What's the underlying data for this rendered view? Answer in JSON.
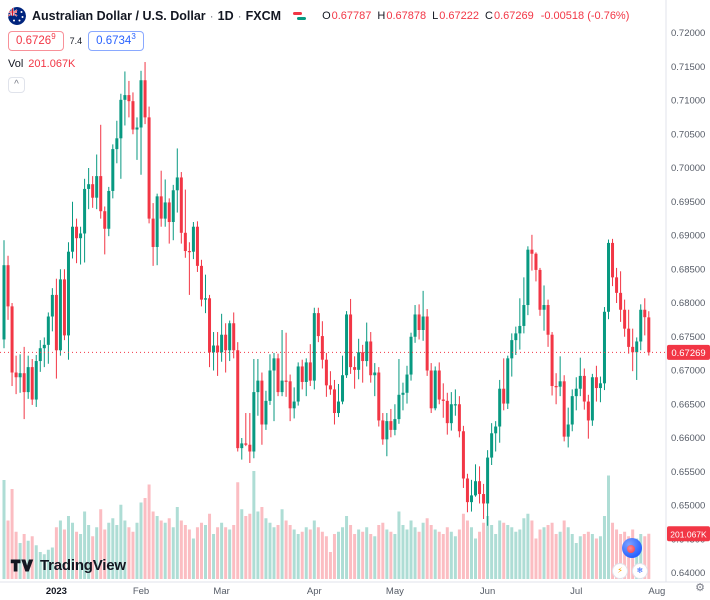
{
  "header": {
    "symbol_name": "Australian Dollar / U.S. Dollar",
    "sep": "·",
    "interval": "1D",
    "exchange": "FXCM",
    "ohlc": {
      "o_label": "O",
      "o": "0.67787",
      "h_label": "H",
      "h": "0.67878",
      "l_label": "L",
      "l": "0.67222",
      "c_label": "C",
      "c": "0.67269",
      "change": "-0.00518 (-0.76%)"
    },
    "sell_price": "0.6726",
    "sell_sup": "9",
    "spread": "7.4",
    "buy_price": "0.6734",
    "buy_sup": "3",
    "vol_label": "Vol",
    "vol_value": "201.067K",
    "collapse_glyph": "^"
  },
  "logo": {
    "text": "TradingView"
  },
  "floating": {
    "lightning": "⚡",
    "snowflake": "❄"
  },
  "axis": {
    "gear_glyph": "⚙"
  },
  "colors": {
    "up": "#089981",
    "down": "#f23645",
    "accent_blue": "#2962ff",
    "axis_text": "#555b66",
    "axis_border": "#e0e3eb",
    "year_text": "#131722"
  },
  "chart_data": {
    "type": "candlestick+volume",
    "symbol": "AUD/USD",
    "exchange": "FXCM",
    "interval": "1D",
    "title": "Australian Dollar / U.S. Dollar · 1D · FXCM",
    "legend_ohlc": {
      "open": 0.67787,
      "high": 0.67878,
      "low": 0.67222,
      "close": 0.67269,
      "change": -0.00518,
      "change_pct": -0.76
    },
    "last_price": 0.67269,
    "last_price_label": "0.67269",
    "volume_label": "201.067K",
    "price_range": [
      0.64,
      0.72
    ],
    "grid": false,
    "legend_position": "top-left",
    "price_axis_labels": [
      "0.72000",
      "0.71500",
      "0.71000",
      "0.70500",
      "0.70000",
      "0.69500",
      "0.69000",
      "0.68500",
      "0.68000",
      "0.67500",
      "0.67000",
      "0.66500",
      "0.66000",
      "0.65500",
      "0.65000",
      "0.64500",
      "0.64000"
    ],
    "time_axis": [
      {
        "label": "2023",
        "i": 13,
        "year": true
      },
      {
        "label": "Feb",
        "i": 34
      },
      {
        "label": "Mar",
        "i": 54
      },
      {
        "label": "Apr",
        "i": 77
      },
      {
        "label": "May",
        "i": 97
      },
      {
        "label": "Jun",
        "i": 120
      },
      {
        "label": "Jul",
        "i": 142
      },
      {
        "label": "Aug",
        "i": 162
      }
    ],
    "candles": [
      [
        0.6746,
        0.6893,
        0.6733,
        0.6856
      ],
      [
        0.6856,
        0.687,
        0.6775,
        0.6795
      ],
      [
        0.6795,
        0.68,
        0.6677,
        0.6697
      ],
      [
        0.6697,
        0.6722,
        0.6665,
        0.669
      ],
      [
        0.669,
        0.6724,
        0.6667,
        0.6696
      ],
      [
        0.6696,
        0.6735,
        0.6628,
        0.6668
      ],
      [
        0.6668,
        0.6722,
        0.6658,
        0.6705
      ],
      [
        0.6705,
        0.6717,
        0.6649,
        0.6657
      ],
      [
        0.6657,
        0.6723,
        0.6646,
        0.6714
      ],
      [
        0.6714,
        0.6745,
        0.6698,
        0.6733
      ],
      [
        0.6733,
        0.6749,
        0.6705,
        0.6738
      ],
      [
        0.6738,
        0.6786,
        0.671,
        0.678
      ],
      [
        0.678,
        0.6822,
        0.6758,
        0.6812
      ],
      [
        0.6812,
        0.6836,
        0.6688,
        0.673
      ],
      [
        0.673,
        0.685,
        0.6722,
        0.6835
      ],
      [
        0.6835,
        0.685,
        0.6745,
        0.6752
      ],
      [
        0.6752,
        0.689,
        0.6716,
        0.6876
      ],
      [
        0.6876,
        0.695,
        0.6866,
        0.6913
      ],
      [
        0.6913,
        0.6925,
        0.6859,
        0.6896
      ],
      [
        0.6896,
        0.6913,
        0.6857,
        0.6903
      ],
      [
        0.6903,
        0.6984,
        0.686,
        0.6969
      ],
      [
        0.6969,
        0.7,
        0.6939,
        0.6976
      ],
      [
        0.6976,
        0.6988,
        0.6941,
        0.6956
      ],
      [
        0.6956,
        0.702,
        0.6939,
        0.6988
      ],
      [
        0.6988,
        0.7064,
        0.6925,
        0.6936
      ],
      [
        0.6936,
        0.6943,
        0.6872,
        0.691
      ],
      [
        0.691,
        0.6972,
        0.6899,
        0.6966
      ],
      [
        0.6966,
        0.7035,
        0.6955,
        0.7028
      ],
      [
        0.7028,
        0.707,
        0.7007,
        0.7044
      ],
      [
        0.7044,
        0.711,
        0.6984,
        0.7101
      ],
      [
        0.7101,
        0.7143,
        0.7063,
        0.7108
      ],
      [
        0.7108,
        0.7129,
        0.7075,
        0.7099
      ],
      [
        0.7099,
        0.7112,
        0.705,
        0.7057
      ],
      [
        0.7057,
        0.7075,
        0.7012,
        0.706
      ],
      [
        0.706,
        0.7144,
        0.699,
        0.713
      ],
      [
        0.713,
        0.7157,
        0.7065,
        0.7075
      ],
      [
        0.7075,
        0.7091,
        0.6918,
        0.6925
      ],
      [
        0.6925,
        0.6948,
        0.6855,
        0.6883
      ],
      [
        0.6883,
        0.6962,
        0.6856,
        0.6958
      ],
      [
        0.6958,
        0.6996,
        0.6913,
        0.6925
      ],
      [
        0.6925,
        0.6983,
        0.6913,
        0.6949
      ],
      [
        0.6949,
        0.6955,
        0.6888,
        0.692
      ],
      [
        0.692,
        0.6975,
        0.6893,
        0.6967
      ],
      [
        0.6967,
        0.7029,
        0.6934,
        0.6986
      ],
      [
        0.6986,
        0.6994,
        0.6888,
        0.6904
      ],
      [
        0.6904,
        0.6968,
        0.6867,
        0.6877
      ],
      [
        0.6877,
        0.689,
        0.6812,
        0.6876
      ],
      [
        0.6876,
        0.692,
        0.6865,
        0.6913
      ],
      [
        0.6913,
        0.6921,
        0.6846,
        0.6855
      ],
      [
        0.6855,
        0.6864,
        0.6795,
        0.6805
      ],
      [
        0.6805,
        0.6842,
        0.6785,
        0.6807
      ],
      [
        0.6807,
        0.6812,
        0.6705,
        0.6727
      ],
      [
        0.6727,
        0.6757,
        0.67,
        0.6737
      ],
      [
        0.6737,
        0.6757,
        0.6692,
        0.6727
      ],
      [
        0.6727,
        0.6784,
        0.6713,
        0.6753
      ],
      [
        0.6753,
        0.677,
        0.6697,
        0.673
      ],
      [
        0.673,
        0.6774,
        0.6714,
        0.677
      ],
      [
        0.677,
        0.6786,
        0.6718,
        0.673
      ],
      [
        0.673,
        0.6742,
        0.658,
        0.6585
      ],
      [
        0.6585,
        0.66,
        0.6568,
        0.6592
      ],
      [
        0.6592,
        0.6637,
        0.6588,
        0.659
      ],
      [
        0.659,
        0.6637,
        0.6563,
        0.658
      ],
      [
        0.658,
        0.6717,
        0.657,
        0.6668
      ],
      [
        0.6668,
        0.6717,
        0.6633,
        0.6685
      ],
      [
        0.6685,
        0.6697,
        0.659,
        0.662
      ],
      [
        0.662,
        0.667,
        0.6612,
        0.6655
      ],
      [
        0.6655,
        0.6724,
        0.6649,
        0.67
      ],
      [
        0.67,
        0.6726,
        0.6625,
        0.6718
      ],
      [
        0.6718,
        0.6725,
        0.6662,
        0.6668
      ],
      [
        0.6668,
        0.676,
        0.6662,
        0.6685
      ],
      [
        0.6685,
        0.6756,
        0.6661,
        0.6684
      ],
      [
        0.6684,
        0.6694,
        0.6625,
        0.6644
      ],
      [
        0.6644,
        0.6675,
        0.6629,
        0.6654
      ],
      [
        0.6654,
        0.6712,
        0.6648,
        0.6706
      ],
      [
        0.6706,
        0.6716,
        0.6672,
        0.6683
      ],
      [
        0.6683,
        0.6718,
        0.6662,
        0.6712
      ],
      [
        0.6712,
        0.6739,
        0.6677,
        0.6685
      ],
      [
        0.6685,
        0.6793,
        0.6672,
        0.6785
      ],
      [
        0.6785,
        0.6793,
        0.6742,
        0.6751
      ],
      [
        0.6751,
        0.6773,
        0.6703,
        0.6716
      ],
      [
        0.6716,
        0.6726,
        0.6661,
        0.6678
      ],
      [
        0.6678,
        0.6699,
        0.6664,
        0.6672
      ],
      [
        0.6672,
        0.6686,
        0.662,
        0.6637
      ],
      [
        0.6637,
        0.668,
        0.6631,
        0.6654
      ],
      [
        0.6654,
        0.6722,
        0.665,
        0.6693
      ],
      [
        0.6693,
        0.6788,
        0.6689,
        0.6783
      ],
      [
        0.6783,
        0.6806,
        0.6695,
        0.6705
      ],
      [
        0.6705,
        0.6721,
        0.6673,
        0.6701
      ],
      [
        0.6701,
        0.6747,
        0.6687,
        0.6727
      ],
      [
        0.6727,
        0.6738,
        0.6682,
        0.6714
      ],
      [
        0.6714,
        0.6771,
        0.6706,
        0.6743
      ],
      [
        0.6743,
        0.6757,
        0.6682,
        0.6693
      ],
      [
        0.6693,
        0.6711,
        0.6662,
        0.6697
      ],
      [
        0.6697,
        0.6705,
        0.6617,
        0.6626
      ],
      [
        0.6626,
        0.6637,
        0.659,
        0.6598
      ],
      [
        0.6598,
        0.6637,
        0.6573,
        0.6625
      ],
      [
        0.6625,
        0.6643,
        0.6601,
        0.6612
      ],
      [
        0.6612,
        0.665,
        0.6604,
        0.6628
      ],
      [
        0.6628,
        0.6717,
        0.6621,
        0.6664
      ],
      [
        0.6664,
        0.6682,
        0.6641,
        0.6667
      ],
      [
        0.6667,
        0.6707,
        0.6651,
        0.6694
      ],
      [
        0.6694,
        0.6756,
        0.6685,
        0.675
      ],
      [
        0.675,
        0.6797,
        0.6741,
        0.6783
      ],
      [
        0.6783,
        0.6798,
        0.6746,
        0.676
      ],
      [
        0.676,
        0.6818,
        0.6744,
        0.678
      ],
      [
        0.678,
        0.6791,
        0.6692,
        0.67
      ],
      [
        0.67,
        0.6711,
        0.6637,
        0.6644
      ],
      [
        0.6644,
        0.6706,
        0.6641,
        0.67
      ],
      [
        0.67,
        0.6712,
        0.665,
        0.6657
      ],
      [
        0.6657,
        0.6681,
        0.663,
        0.6655
      ],
      [
        0.6655,
        0.6667,
        0.6605,
        0.6622
      ],
      [
        0.6622,
        0.6668,
        0.6611,
        0.665
      ],
      [
        0.665,
        0.6672,
        0.6633,
        0.665
      ],
      [
        0.665,
        0.6662,
        0.6601,
        0.661
      ],
      [
        0.661,
        0.6618,
        0.6526,
        0.654
      ],
      [
        0.654,
        0.6547,
        0.649,
        0.6505
      ],
      [
        0.6505,
        0.6538,
        0.6491,
        0.6515
      ],
      [
        0.6515,
        0.6561,
        0.6513,
        0.6536
      ],
      [
        0.6536,
        0.6558,
        0.6503,
        0.6517
      ],
      [
        0.6517,
        0.6532,
        0.648,
        0.6503
      ],
      [
        0.6503,
        0.6582,
        0.647,
        0.6571
      ],
      [
        0.6571,
        0.6622,
        0.656,
        0.6607
      ],
      [
        0.6607,
        0.6625,
        0.658,
        0.6617
      ],
      [
        0.6617,
        0.6686,
        0.6593,
        0.6673
      ],
      [
        0.6673,
        0.6718,
        0.6641,
        0.6651
      ],
      [
        0.6651,
        0.6722,
        0.6643,
        0.6718
      ],
      [
        0.6718,
        0.6755,
        0.6691,
        0.6745
      ],
      [
        0.6745,
        0.6765,
        0.6723,
        0.6755
      ],
      [
        0.6755,
        0.6807,
        0.6731,
        0.6766
      ],
      [
        0.6766,
        0.6838,
        0.6755,
        0.6797
      ],
      [
        0.6797,
        0.6884,
        0.6782,
        0.6879
      ],
      [
        0.6879,
        0.6901,
        0.6848,
        0.6873
      ],
      [
        0.6873,
        0.6875,
        0.6832,
        0.6849
      ],
      [
        0.6849,
        0.6852,
        0.6781,
        0.679
      ],
      [
        0.679,
        0.6826,
        0.6759,
        0.6797
      ],
      [
        0.6797,
        0.6805,
        0.6735,
        0.6753
      ],
      [
        0.6753,
        0.6757,
        0.6663,
        0.6677
      ],
      [
        0.6677,
        0.6696,
        0.665,
        0.6676
      ],
      [
        0.6676,
        0.6721,
        0.6662,
        0.6684
      ],
      [
        0.6684,
        0.6693,
        0.6595,
        0.6602
      ],
      [
        0.6602,
        0.6645,
        0.6586,
        0.662
      ],
      [
        0.662,
        0.6672,
        0.661,
        0.6662
      ],
      [
        0.6662,
        0.669,
        0.6641,
        0.6673
      ],
      [
        0.6673,
        0.6719,
        0.6662,
        0.6692
      ],
      [
        0.6692,
        0.6703,
        0.6642,
        0.6654
      ],
      [
        0.6654,
        0.6664,
        0.6599,
        0.6626
      ],
      [
        0.6626,
        0.6695,
        0.6618,
        0.669
      ],
      [
        0.669,
        0.6707,
        0.6654,
        0.6674
      ],
      [
        0.6674,
        0.6691,
        0.6653,
        0.6681
      ],
      [
        0.6681,
        0.6794,
        0.6671,
        0.6787
      ],
      [
        0.6787,
        0.6894,
        0.6776,
        0.6889
      ],
      [
        0.6889,
        0.6895,
        0.6825,
        0.6838
      ],
      [
        0.6838,
        0.6852,
        0.68,
        0.6815
      ],
      [
        0.6815,
        0.6847,
        0.6772,
        0.679
      ],
      [
        0.679,
        0.6805,
        0.675,
        0.6762
      ],
      [
        0.6762,
        0.679,
        0.6725,
        0.6735
      ],
      [
        0.6735,
        0.6762,
        0.6699,
        0.6727
      ],
      [
        0.6727,
        0.6749,
        0.6686,
        0.6743
      ],
      [
        0.6743,
        0.6798,
        0.673,
        0.679
      ],
      [
        0.679,
        0.6807,
        0.6752,
        0.6779
      ],
      [
        0.67787,
        0.67878,
        0.67222,
        0.67269
      ]
    ],
    "volumes_k": [
      440,
      260,
      400,
      210,
      160,
      200,
      170,
      190,
      150,
      120,
      110,
      130,
      140,
      230,
      260,
      220,
      280,
      250,
      210,
      200,
      300,
      240,
      190,
      230,
      310,
      220,
      250,
      270,
      240,
      330,
      260,
      230,
      210,
      250,
      340,
      360,
      420,
      300,
      280,
      260,
      250,
      270,
      230,
      320,
      260,
      240,
      220,
      180,
      230,
      250,
      240,
      290,
      200,
      230,
      250,
      230,
      220,
      240,
      430,
      310,
      280,
      290,
      480,
      300,
      320,
      270,
      250,
      230,
      240,
      310,
      260,
      240,
      220,
      200,
      210,
      230,
      220,
      260,
      230,
      210,
      190,
      120,
      200,
      210,
      230,
      280,
      240,
      200,
      220,
      210,
      230,
      200,
      190,
      240,
      250,
      220,
      210,
      200,
      300,
      240,
      220,
      260,
      230,
      210,
      250,
      270,
      240,
      220,
      210,
      200,
      230,
      210,
      190,
      220,
      290,
      260,
      230,
      180,
      210,
      250,
      280,
      240,
      200,
      260,
      250,
      240,
      230,
      210,
      220,
      270,
      290,
      260,
      180,
      220,
      230,
      240,
      250,
      200,
      210,
      260,
      230,
      200,
      160,
      190,
      200,
      210,
      200,
      180,
      190,
      280,
      460,
      250,
      220,
      200,
      210,
      190,
      220,
      180,
      200,
      190,
      201.067
    ]
  }
}
